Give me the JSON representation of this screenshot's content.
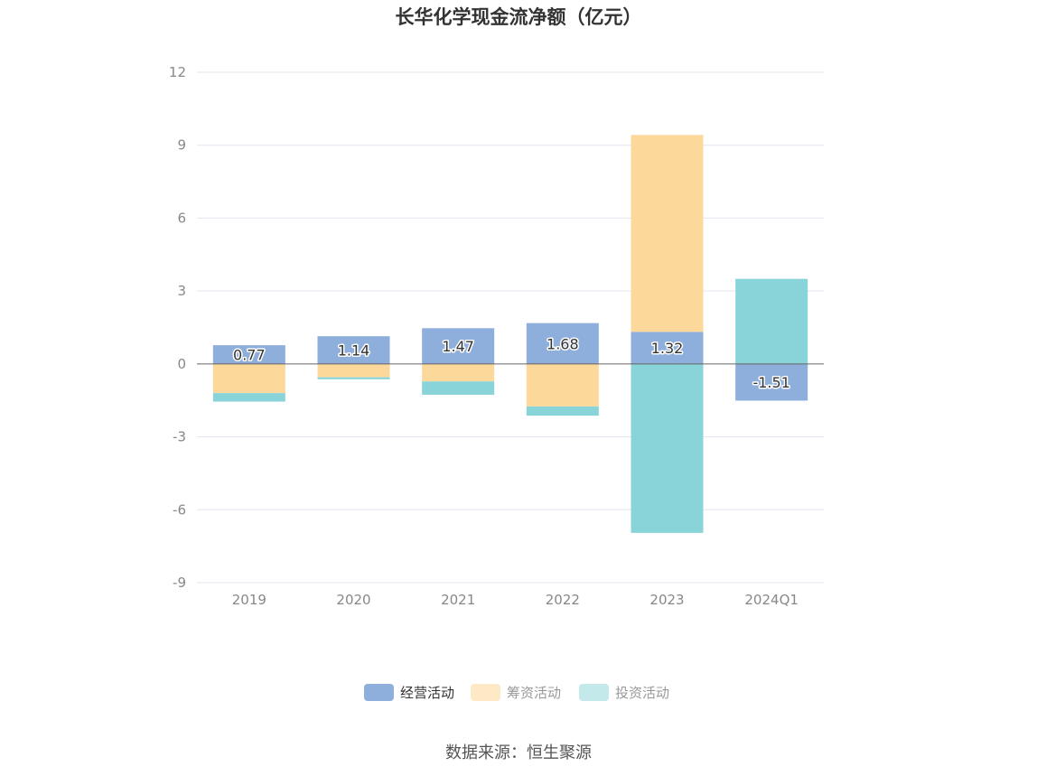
{
  "chart_data": {
    "type": "bar",
    "stacked": true,
    "title": "长华化学现金流净额（亿元）",
    "categories": [
      "2019",
      "2020",
      "2021",
      "2022",
      "2023",
      "2024Q1"
    ],
    "series": [
      {
        "name": "经营活动",
        "values": [
          0.77,
          1.14,
          1.47,
          1.68,
          1.32,
          -1.51
        ],
        "color": "#8eaedb"
      },
      {
        "name": "筹资活动",
        "values": [
          -1.2,
          -0.55,
          -0.72,
          -1.75,
          8.1,
          0.0
        ],
        "color": "#fdd89b"
      },
      {
        "name": "投资活动",
        "values": [
          -0.35,
          -0.08,
          -0.55,
          -0.38,
          -6.95,
          3.5
        ],
        "color": "#88d4d8"
      }
    ],
    "data_labels": [
      "0.77",
      "1.14",
      "1.47",
      "1.68",
      "1.32",
      "-1.51"
    ],
    "ylim": [
      -9,
      12
    ],
    "yticks": [
      12,
      9,
      6,
      3,
      0,
      -3,
      -6,
      -9
    ],
    "xlabel": "",
    "ylabel": "",
    "grid": true,
    "legend_position": "bottom",
    "legend_colors": [
      "#8eaedb",
      "#fde9c6",
      "#c3e9eb"
    ],
    "legend_text_colors": [
      "#333333",
      "#999999",
      "#999999"
    ]
  },
  "source": "数据来源：恒生聚源"
}
